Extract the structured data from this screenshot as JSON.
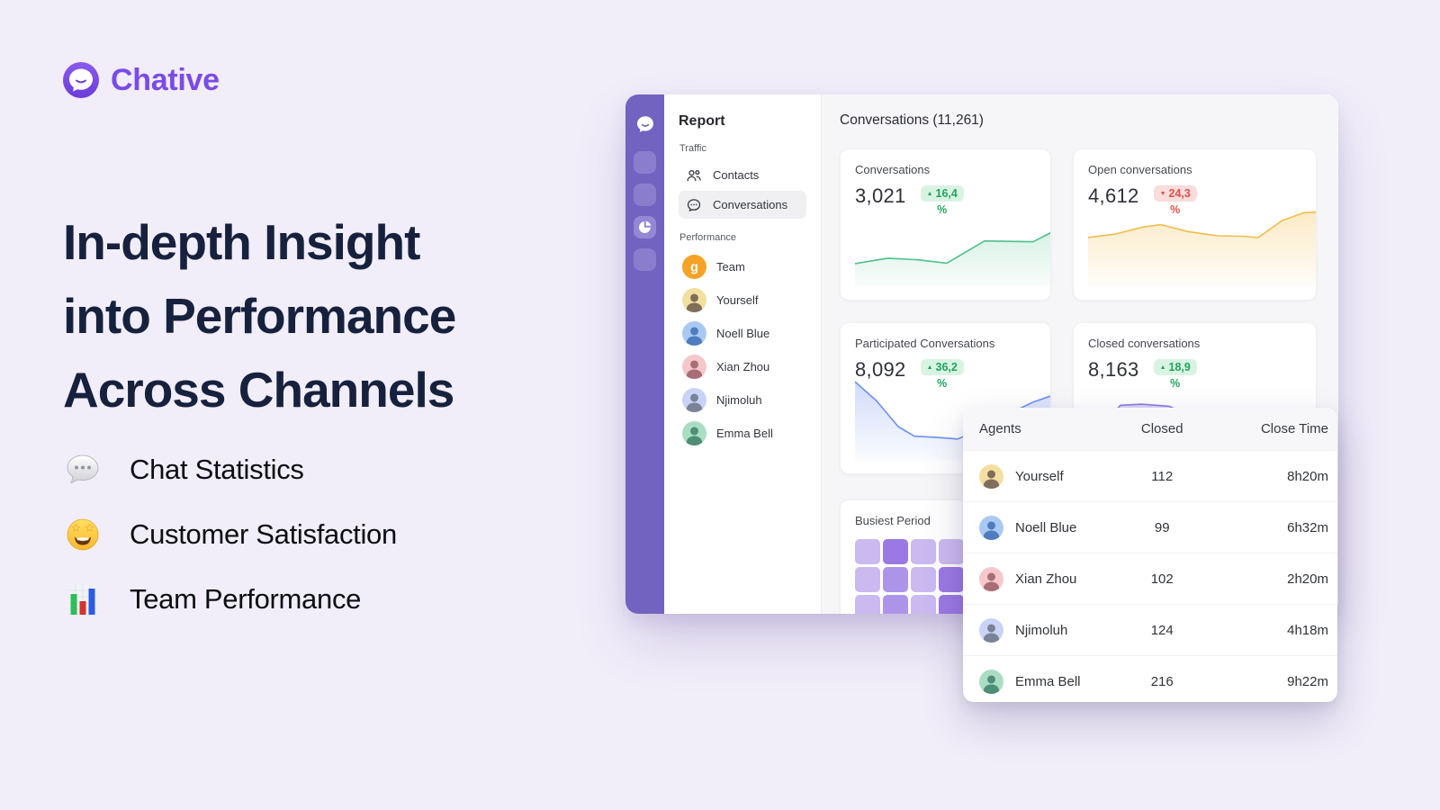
{
  "colors": {
    "page_background": "#F1EDF9",
    "brand_purple": "#7B4BE8",
    "headline_navy": "#16213D",
    "rail_purple": "#7263C0",
    "positive_green": "#1FA55C",
    "positive_bg": "#D9F3E3",
    "negative_red": "#E2504C",
    "negative_bg": "#FADCDB"
  },
  "brand": {
    "name": "Chative"
  },
  "hero": {
    "title_lines": [
      "In-depth Insight",
      "into Performance",
      "Across Channels"
    ],
    "features": [
      {
        "icon": "speech-balloon-icon",
        "label": "Chat Statistics"
      },
      {
        "icon": "star-struck-icon",
        "label": "Customer Satisfaction"
      },
      {
        "icon": "bar-chart-icon",
        "label": "Team Performance"
      }
    ]
  },
  "dashboard": {
    "sidebar": {
      "title": "Report",
      "traffic_label": "Traffic",
      "performance_label": "Performance",
      "traffic_items": [
        {
          "label": "Contacts",
          "selected": false
        },
        {
          "label": "Conversations",
          "selected": true
        }
      ],
      "people": [
        {
          "label": "Team",
          "avatar_bg": "#F5A327",
          "glyph": "g"
        },
        {
          "label": "Yourself",
          "avatar_bg": "#F3DFA0",
          "fg": "#6B5B4E"
        },
        {
          "label": "Noell Blue",
          "avatar_bg": "#A9C9F3",
          "fg": "#3F6EB5"
        },
        {
          "label": "Xian Zhou",
          "avatar_bg": "#F5C7CB",
          "fg": "#9A5E66"
        },
        {
          "label": "Njimoluh",
          "avatar_bg": "#C9D3F5",
          "fg": "#6B7386"
        },
        {
          "label": "Emma Bell",
          "avatar_bg": "#A9DEC2",
          "fg": "#3E7F68"
        }
      ]
    },
    "main_title": "Conversations (11,261)",
    "stat_cards": [
      {
        "title": "Conversations",
        "value": "3,021",
        "delta": "16,4",
        "unit": "%",
        "direction": "up",
        "line_color": "#4FC08C",
        "points": [
          [
            0,
            29
          ],
          [
            12,
            26.5
          ],
          [
            23,
            27.2
          ],
          [
            34,
            28.8
          ],
          [
            48,
            18.4
          ],
          [
            66,
            18.8
          ],
          [
            82,
            8.4
          ],
          [
            100,
            0.8
          ]
        ]
      },
      {
        "title": "Open conversations",
        "value": "4,612",
        "delta": "24,3",
        "unit": "%",
        "direction": "down",
        "line_color": "#F2BC4A",
        "points": [
          [
            0,
            16.8
          ],
          [
            10,
            15.2
          ],
          [
            20,
            12
          ],
          [
            27,
            10.8
          ],
          [
            37,
            14
          ],
          [
            48,
            16
          ],
          [
            57,
            16.2
          ],
          [
            63,
            16.8
          ],
          [
            72,
            8.8
          ],
          [
            80,
            5.2
          ],
          [
            88,
            4.8
          ],
          [
            100,
            3
          ]
        ]
      },
      {
        "title": "Participated Conversations",
        "value": "8,092",
        "delta": "36,2",
        "unit": "%",
        "direction": "up",
        "line_color": "#6C8FF0",
        "points": [
          [
            0,
            3
          ],
          [
            8,
            12
          ],
          [
            16,
            24
          ],
          [
            22,
            28.5
          ],
          [
            30,
            29
          ],
          [
            38,
            29.8
          ],
          [
            47,
            25
          ],
          [
            57,
            18
          ],
          [
            66,
            12.5
          ],
          [
            74,
            9
          ],
          [
            82,
            6.5
          ],
          [
            100,
            1
          ]
        ]
      },
      {
        "title": "Closed conversations",
        "value": "8,163",
        "delta": "18,9",
        "unit": "%",
        "direction": "up",
        "line_color": "#8F7BE8",
        "points": [
          [
            0,
            30
          ],
          [
            6,
            22
          ],
          [
            12,
            14
          ],
          [
            20,
            13.5
          ],
          [
            30,
            14.5
          ],
          [
            38,
            19
          ],
          [
            46,
            26
          ],
          [
            54,
            31
          ],
          [
            62,
            32
          ],
          [
            70,
            28
          ],
          [
            78,
            22
          ],
          [
            86,
            16
          ],
          [
            92,
            14
          ],
          [
            96,
            16.5
          ],
          [
            100,
            13
          ]
        ]
      }
    ],
    "busiest": {
      "title": "Busiest Period",
      "grid": [
        [
          1,
          3,
          1,
          1,
          2,
          1,
          2
        ],
        [
          1,
          2,
          1,
          3,
          1,
          2,
          1
        ],
        [
          1,
          2,
          1,
          3,
          2,
          1,
          3
        ]
      ],
      "cell_colors": {
        "1": "#CBBAF0",
        "2": "#AE94E8",
        "3": "#9B79E4"
      }
    }
  },
  "agents_table": {
    "columns": [
      "Agents",
      "Closed",
      "Close Time"
    ],
    "rows": [
      {
        "name": "Yourself",
        "closed": "112",
        "close_time": "8h20m",
        "avatar_bg": "#F3DFA0",
        "fg": "#6B5B4E"
      },
      {
        "name": "Noell Blue",
        "closed": "99",
        "close_time": "6h32m",
        "avatar_bg": "#A9C9F3",
        "fg": "#3F6EB5"
      },
      {
        "name": "Xian Zhou",
        "closed": "102",
        "close_time": "2h20m",
        "avatar_bg": "#F5C7CB",
        "fg": "#9A5E66"
      },
      {
        "name": "Njimoluh",
        "closed": "124",
        "close_time": "4h18m",
        "avatar_bg": "#C9D3F5",
        "fg": "#6B7386"
      },
      {
        "name": "Emma Bell",
        "closed": "216",
        "close_time": "9h22m",
        "avatar_bg": "#A9DEC2",
        "fg": "#3E7F68"
      }
    ]
  }
}
